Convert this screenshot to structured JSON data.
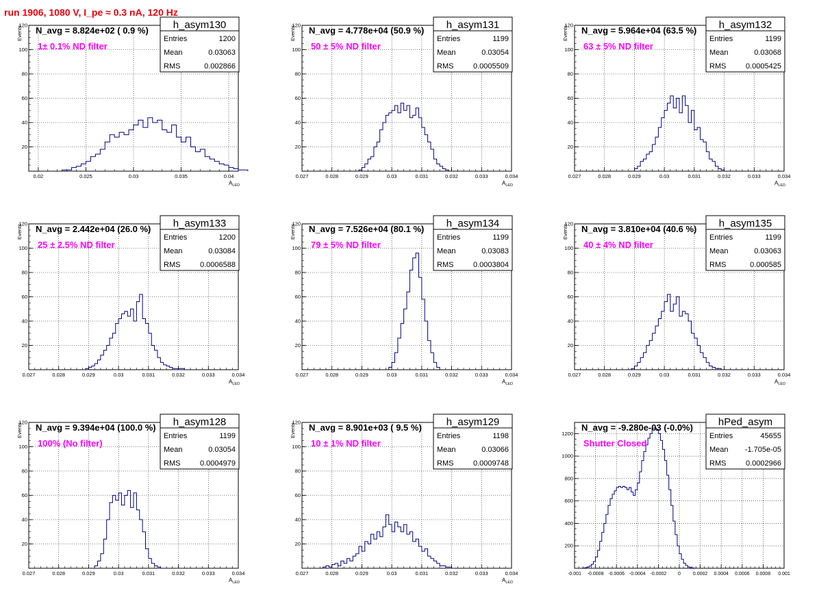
{
  "page": {
    "title": "run 1906,  1080 V, I_pe ≈ 0.3 nA, 120 Hz"
  },
  "colors": {
    "histogram": "#00007f",
    "annotation": "#ff00ff",
    "title": "#e8000b",
    "grid": "#000000"
  },
  "chart_data": [
    {
      "type": "bar",
      "name": "h_asym130",
      "stats": {
        "entries_label": "Entries",
        "entries": "1200",
        "mean_label": "Mean",
        "mean": "0.03063",
        "rms_label": "RMS",
        "rms": "0.002866"
      },
      "navg": "N_avg = 8.824e+02 ( 0.9 %)",
      "annotation": "1± 0.1% ND filter",
      "xlabel": "A",
      "xlabel_sub": "LED",
      "ylabel": "Events",
      "xlim": [
        0.019,
        0.041
      ],
      "ylim": [
        0,
        120
      ],
      "xticks": [
        "0.02",
        "0.025",
        "0.03",
        "0.035",
        "0.04"
      ],
      "xtick_values": [
        0.02,
        0.025,
        0.03,
        0.035,
        0.04
      ],
      "yticks": [
        "20",
        "40",
        "60",
        "80",
        "100",
        "120"
      ],
      "ytick_values": [
        20,
        40,
        60,
        80,
        100,
        120
      ],
      "bin_start": 0.0225,
      "bin_width": 0.0005,
      "values": [
        1,
        1,
        3,
        4,
        6,
        8,
        12,
        14,
        18,
        24,
        30,
        28,
        32,
        30,
        34,
        38,
        42,
        36,
        44,
        40,
        42,
        34,
        32,
        38,
        28,
        24,
        28,
        20,
        16,
        18,
        12,
        10,
        8,
        6,
        5,
        3,
        2,
        1,
        1
      ]
    },
    {
      "type": "bar",
      "name": "h_asym131",
      "stats": {
        "entries_label": "Entries",
        "entries": "1199",
        "mean_label": "Mean",
        "mean": "0.03054",
        "rms_label": "RMS",
        "rms": "0.0005509"
      },
      "navg": "N_avg = 4.778e+04 (50.9 %)",
      "annotation": "50 ± 5% ND filter",
      "xlabel": "A",
      "xlabel_sub": "LED",
      "ylabel": "Events",
      "xlim": [
        0.027,
        0.034
      ],
      "ylim": [
        0,
        120
      ],
      "xticks": [
        "0.027",
        "0.028",
        "0.029",
        "0.03",
        "0.031",
        "0.032",
        "0.033",
        "0.034"
      ],
      "xtick_values": [
        0.027,
        0.028,
        0.029,
        0.03,
        0.031,
        0.032,
        0.033,
        0.034
      ],
      "yticks": [
        "20",
        "40",
        "60",
        "80",
        "100",
        "120"
      ],
      "ytick_values": [
        20,
        40,
        60,
        80,
        100,
        120
      ],
      "bin_start": 0.0289,
      "bin_width": 0.0001,
      "values": [
        1,
        3,
        6,
        10,
        12,
        20,
        24,
        34,
        40,
        46,
        48,
        50,
        54,
        48,
        56,
        50,
        54,
        44,
        46,
        52,
        44,
        36,
        30,
        24,
        18,
        10,
        6,
        4,
        2,
        1
      ]
    },
    {
      "type": "bar",
      "name": "h_asym132",
      "stats": {
        "entries_label": "Entries",
        "entries": "1199",
        "mean_label": "Mean",
        "mean": "0.03068",
        "rms_label": "RMS",
        "rms": "0.0005425"
      },
      "navg": "N_avg = 5.964e+04 (63.5 %)",
      "annotation": "63 ± 5% ND filter",
      "xlabel": "A",
      "xlabel_sub": "LED",
      "ylabel": "Events",
      "xlim": [
        0.027,
        0.034
      ],
      "ylim": [
        0,
        120
      ],
      "xticks": [
        "0.027",
        "0.028",
        "0.029",
        "0.03",
        "0.031",
        "0.032",
        "0.033",
        "0.034"
      ],
      "xtick_values": [
        0.027,
        0.028,
        0.029,
        0.03,
        0.031,
        0.032,
        0.033,
        0.034
      ],
      "yticks": [
        "20",
        "40",
        "60",
        "80",
        "100",
        "120"
      ],
      "ytick_values": [
        20,
        40,
        60,
        80,
        100,
        120
      ],
      "bin_start": 0.029,
      "bin_width": 0.0001,
      "values": [
        2,
        4,
        8,
        10,
        14,
        16,
        22,
        28,
        36,
        44,
        50,
        56,
        62,
        52,
        60,
        48,
        62,
        54,
        40,
        50,
        34,
        36,
        26,
        24,
        16,
        10,
        8,
        4,
        2,
        1
      ]
    },
    {
      "type": "bar",
      "name": "h_asym133",
      "stats": {
        "entries_label": "Entries",
        "entries": "1200",
        "mean_label": "Mean",
        "mean": "0.03084",
        "rms_label": "RMS",
        "rms": "0.0006588"
      },
      "navg": "N_avg = 2.442e+04 (26.0 %)",
      "annotation": "25 ± 2.5% ND filter",
      "xlabel": "A",
      "xlabel_sub": "LED",
      "ylabel": "Events",
      "xlim": [
        0.027,
        0.034
      ],
      "ylim": [
        0,
        120
      ],
      "xticks": [
        "0.027",
        "0.028",
        "0.029",
        "0.03",
        "0.031",
        "0.032",
        "0.033",
        "0.034"
      ],
      "xtick_values": [
        0.027,
        0.028,
        0.029,
        0.03,
        0.031,
        0.032,
        0.033,
        0.034
      ],
      "yticks": [
        "20",
        "40",
        "60",
        "80",
        "100",
        "120"
      ],
      "ytick_values": [
        20,
        40,
        60,
        80,
        100,
        120
      ],
      "bin_start": 0.0289,
      "bin_width": 0.0001,
      "values": [
        1,
        2,
        3,
        5,
        8,
        12,
        16,
        20,
        26,
        30,
        38,
        42,
        46,
        48,
        44,
        50,
        40,
        56,
        62,
        42,
        38,
        30,
        20,
        16,
        10,
        6,
        4,
        3,
        2,
        1,
        1,
        1,
        1
      ]
    },
    {
      "type": "bar",
      "name": "h_asym134",
      "stats": {
        "entries_label": "Entries",
        "entries": "1199",
        "mean_label": "Mean",
        "mean": "0.03083",
        "rms_label": "RMS",
        "rms": "0.0003804"
      },
      "navg": "N_avg = 7.526e+04 (80.1 %)",
      "annotation": "79 ± 5% ND filter",
      "xlabel": "A",
      "xlabel_sub": "LED",
      "ylabel": "Events",
      "xlim": [
        0.027,
        0.034
      ],
      "ylim": [
        0,
        120
      ],
      "xticks": [
        "0.027",
        "0.028",
        "0.029",
        "0.03",
        "0.031",
        "0.032",
        "0.033",
        "0.034"
      ],
      "xtick_values": [
        0.027,
        0.028,
        0.029,
        0.03,
        0.031,
        0.032,
        0.033,
        0.034
      ],
      "yticks": [
        "20",
        "40",
        "60",
        "80",
        "100",
        "120"
      ],
      "ytick_values": [
        20,
        40,
        60,
        80,
        100,
        120
      ],
      "bin_start": 0.0299,
      "bin_width": 0.0001,
      "values": [
        2,
        6,
        14,
        26,
        38,
        50,
        64,
        82,
        92,
        96,
        76,
        58,
        40,
        24,
        14,
        6,
        2
      ]
    },
    {
      "type": "bar",
      "name": "h_asym135",
      "stats": {
        "entries_label": "Entries",
        "entries": "1199",
        "mean_label": "Mean",
        "mean": "0.03063",
        "rms_label": "RMS",
        "rms": "0.000585"
      },
      "navg": "N_avg = 3.810e+04 (40.6 %)",
      "annotation": "40 ± 4% ND filter",
      "xlabel": "A",
      "xlabel_sub": "LED",
      "ylabel": "Events",
      "xlim": [
        0.027,
        0.034
      ],
      "ylim": [
        0,
        120
      ],
      "xticks": [
        "0.027",
        "0.028",
        "0.029",
        "0.03",
        "0.031",
        "0.032",
        "0.033",
        "0.034"
      ],
      "xtick_values": [
        0.027,
        0.028,
        0.029,
        0.03,
        0.031,
        0.032,
        0.033,
        0.034
      ],
      "yticks": [
        "20",
        "40",
        "60",
        "80",
        "100",
        "120"
      ],
      "ytick_values": [
        20,
        40,
        60,
        80,
        100,
        120
      ],
      "bin_start": 0.0289,
      "bin_width": 0.0001,
      "values": [
        1,
        3,
        6,
        10,
        14,
        20,
        24,
        30,
        36,
        42,
        48,
        56,
        62,
        48,
        54,
        60,
        44,
        48,
        46,
        40,
        30,
        26,
        20,
        14,
        10,
        6,
        3,
        2,
        1,
        1
      ]
    },
    {
      "type": "bar",
      "name": "h_asym128",
      "stats": {
        "entries_label": "Entries",
        "entries": "1199",
        "mean_label": "Mean",
        "mean": "0.03054",
        "rms_label": "RMS",
        "rms": "0.0004979"
      },
      "navg": "N_avg = 9.394e+04 (100.0 %)",
      "annotation": "100% (No filter)",
      "xlabel": "A",
      "xlabel_sub": "LED",
      "ylabel": "Events",
      "xlim": [
        0.027,
        0.034
      ],
      "ylim": [
        0,
        120
      ],
      "xticks": [
        "0.027",
        "0.028",
        "0.029",
        "0.03",
        "0.031",
        "0.032",
        "0.033",
        "0.034"
      ],
      "xtick_values": [
        0.027,
        0.028,
        0.029,
        0.03,
        0.031,
        0.032,
        0.033,
        0.034
      ],
      "yticks": [
        "20",
        "40",
        "60",
        "80",
        "100",
        "120"
      ],
      "ytick_values": [
        20,
        40,
        60,
        80,
        100,
        120
      ],
      "bin_start": 0.0292,
      "bin_width": 0.0001,
      "values": [
        2,
        6,
        12,
        24,
        40,
        54,
        60,
        56,
        62,
        52,
        60,
        64,
        50,
        62,
        48,
        40,
        30,
        16,
        8,
        4,
        2,
        1
      ]
    },
    {
      "type": "bar",
      "name": "h_asym129",
      "stats": {
        "entries_label": "Entries",
        "entries": "1198",
        "mean_label": "Mean",
        "mean": "0.03066",
        "rms_label": "RMS",
        "rms": "0.0009748"
      },
      "navg": "N_avg = 8.901e+03 ( 9.5 %)",
      "annotation": "10 ± 1% ND filter",
      "xlabel": "A",
      "xlabel_sub": "LED",
      "ylabel": "Events",
      "xlim": [
        0.027,
        0.034
      ],
      "ylim": [
        0,
        120
      ],
      "xticks": [
        "0.027",
        "0.028",
        "0.029",
        "0.03",
        "0.031",
        "0.032",
        "0.033",
        "0.034"
      ],
      "xtick_values": [
        0.027,
        0.028,
        0.029,
        0.03,
        0.031,
        0.032,
        0.033,
        0.034
      ],
      "yticks": [
        "20",
        "40",
        "60",
        "80",
        "100",
        "120"
      ],
      "ytick_values": [
        20,
        40,
        60,
        80,
        100,
        120
      ],
      "bin_start": 0.0277,
      "bin_width": 0.0001,
      "values": [
        1,
        2,
        1,
        3,
        4,
        2,
        6,
        4,
        8,
        6,
        10,
        12,
        18,
        14,
        22,
        20,
        28,
        24,
        30,
        26,
        34,
        44,
        36,
        30,
        38,
        34,
        30,
        36,
        28,
        30,
        22,
        24,
        18,
        14,
        16,
        10,
        8,
        6,
        4,
        2,
        2,
        1,
        1
      ]
    },
    {
      "type": "bar",
      "name": "hPed_asym",
      "stats": {
        "entries_label": "Entries",
        "entries": "45655",
        "mean_label": "Mean",
        "mean": "-1.705e-05",
        "rms_label": "RMS",
        "rms": "0.0002966"
      },
      "navg": "N_avg = -9.280e-03 (-0.0%)",
      "annotation": "Shutter Closed",
      "xlabel": "",
      "xlabel_sub": "",
      "ylabel": "",
      "xlim": [
        -0.001,
        0.001
      ],
      "ylim": [
        0,
        1300
      ],
      "xticks": [
        "-0.001",
        "-0.0008",
        "-0.0006",
        "-0.0004",
        "-0.0002",
        "0",
        "0.0002",
        "0.0004",
        "0.0006",
        "0.0008",
        "0.001"
      ],
      "xtick_values": [
        -0.001,
        -0.0008,
        -0.0006,
        -0.0004,
        -0.0002,
        0,
        0.0002,
        0.0004,
        0.0006,
        0.0008,
        0.001
      ],
      "yticks": [
        "200",
        "400",
        "600",
        "800",
        "1000",
        "1200"
      ],
      "ytick_values": [
        200,
        400,
        600,
        800,
        1000,
        1200
      ],
      "bin_start": -0.00092,
      "bin_width": 2e-05,
      "values": [
        2,
        5,
        10,
        20,
        35,
        60,
        100,
        160,
        240,
        320,
        400,
        480,
        560,
        620,
        660,
        690,
        720,
        730,
        720,
        730,
        720,
        700,
        720,
        680,
        650,
        700,
        760,
        860,
        960,
        1040,
        1100,
        1160,
        1200,
        1250,
        1250,
        1230,
        1200,
        1140,
        1060,
        960,
        830,
        700,
        560,
        420,
        300,
        200,
        130,
        80,
        45,
        25,
        12,
        6,
        3,
        1
      ]
    }
  ]
}
